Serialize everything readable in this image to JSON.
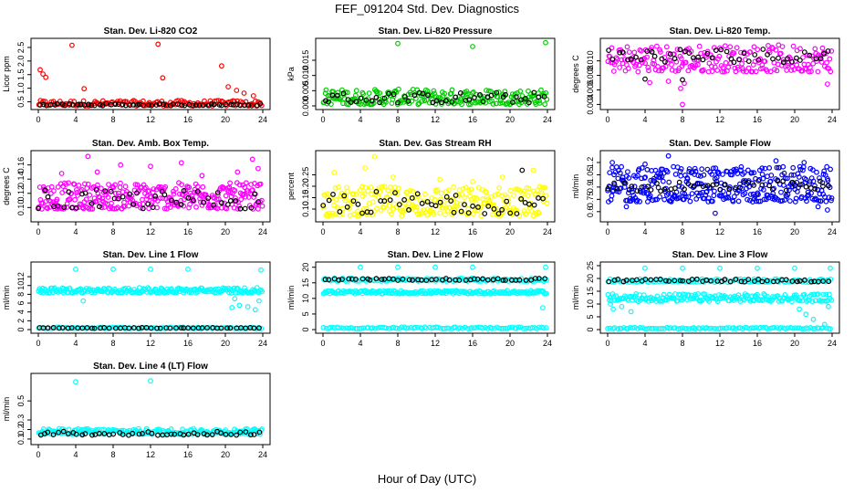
{
  "title": "FEF_091204  Std. Dev. Diagnostics",
  "xlabel": "Hour of Day (UTC)",
  "colors": {
    "red": "#ff0000",
    "green": "#00cc00",
    "magenta": "#ff00ff",
    "yellow": "#ffff00",
    "blue": "#0000ff",
    "cyan": "#00ffff",
    "black": "#000000"
  },
  "chart_data": [
    {
      "type": "scatter",
      "title": "Stan. Dev. Li-820 CO2",
      "ylabel": "Licor ppm",
      "xlim": [
        0,
        24
      ],
      "ylim": [
        0.35,
        2.7
      ],
      "xticks": [
        0,
        4,
        8,
        12,
        16,
        20,
        24
      ],
      "yticks": [
        {
          "v": 0.5,
          "l": "0.5"
        },
        {
          "v": 1.0,
          "l": "1.0"
        },
        {
          "v": 1.5,
          "l": "1.5"
        },
        {
          "v": 2.0,
          "l": "2.0"
        },
        {
          "v": 2.5,
          "l": "2.5"
        }
      ],
      "series": [
        {
          "color": "red",
          "dense": {
            "lo": 0.35,
            "hi": 0.55,
            "n": 140
          },
          "extra": [
            [
              0.2,
              1.68
            ],
            [
              0.5,
              1.52
            ],
            [
              0.8,
              1.4
            ],
            [
              3.6,
              2.58
            ],
            [
              4.9,
              0.98
            ],
            [
              12.8,
              2.62
            ],
            [
              13.3,
              1.38
            ],
            [
              19.6,
              1.82
            ],
            [
              20.3,
              1.05
            ],
            [
              21.2,
              0.92
            ],
            [
              22,
              0.82
            ],
            [
              23,
              0.72
            ]
          ]
        },
        {
          "color": "black",
          "dense": {
            "lo": 0.36,
            "hi": 0.43,
            "n": 60
          },
          "extra": []
        }
      ]
    },
    {
      "type": "scatter",
      "title": "Stan. Dev. Li-820 Pressure",
      "ylabel": "kPa",
      "xlim": [
        0,
        24
      ],
      "ylim": [
        0,
        0.021
      ],
      "xticks": [
        0,
        4,
        8,
        12,
        16,
        20,
        24
      ],
      "yticks": [
        {
          "v": 0,
          "l": "0.000"
        },
        {
          "v": 0.005,
          "l": "0.005"
        },
        {
          "v": 0.01,
          "l": "0.010"
        },
        {
          "v": 0.015,
          "l": "0.015"
        }
      ],
      "series": [
        {
          "color": "green",
          "dense": {
            "lo": 0.0005,
            "hi": 0.0055,
            "n": 230
          },
          "extra": [
            [
              8,
              0.0205
            ],
            [
              16,
              0.0195
            ],
            [
              23.8,
              0.0208
            ]
          ]
        },
        {
          "color": "black",
          "dense": {
            "lo": 0.001,
            "hi": 0.0045,
            "n": 48
          },
          "extra": []
        }
      ]
    },
    {
      "type": "scatter",
      "title": "Stan. Dev. Li-820 Temp.",
      "ylabel": "degrees C",
      "xlim": [
        0,
        24
      ],
      "ylim": [
        0.0038,
        0.0126
      ],
      "xticks": [
        0,
        4,
        8,
        12,
        16,
        20,
        24
      ],
      "yticks": [
        {
          "v": 0.004,
          "l": "0.004"
        },
        {
          "v": 0.006,
          "l": "0.006"
        },
        {
          "v": 0.008,
          "l": "0.008"
        },
        {
          "v": 0.01,
          "l": "0.010"
        }
      ],
      "series": [
        {
          "color": "magenta",
          "dense": {
            "lo": 0.0085,
            "hi": 0.0122,
            "n": 230
          },
          "extra": [
            [
              8,
              0.004
            ],
            [
              7.8,
              0.0062
            ],
            [
              4.5,
              0.007
            ],
            [
              23.5,
              0.0068
            ],
            [
              6.5,
              0.0072
            ],
            [
              8.2,
              0.0069
            ]
          ]
        },
        {
          "color": "black",
          "dense": {
            "lo": 0.0098,
            "hi": 0.0118,
            "n": 48
          },
          "extra": [
            [
              4,
              0.0075
            ],
            [
              8,
              0.0074
            ]
          ]
        }
      ]
    },
    {
      "type": "scatter",
      "title": "Stan. Dev. Amb. Box Temp.",
      "ylabel": "degrees C",
      "xlim": [
        0,
        24
      ],
      "ylim": [
        0.085,
        0.175
      ],
      "xticks": [
        0,
        4,
        8,
        12,
        16,
        20,
        24
      ],
      "yticks": [
        {
          "v": 0.1,
          "l": "0.10"
        },
        {
          "v": 0.12,
          "l": "0.12"
        },
        {
          "v": 0.14,
          "l": "0.14"
        },
        {
          "v": 0.16,
          "l": "0.16"
        }
      ],
      "series": [
        {
          "color": "magenta",
          "dense": {
            "lo": 0.098,
            "hi": 0.135,
            "n": 320
          },
          "extra": [
            [
              5.3,
              0.172
            ],
            [
              8.8,
              0.16
            ],
            [
              12,
              0.158
            ],
            [
              15.3,
              0.163
            ],
            [
              22.9,
              0.168
            ],
            [
              23.5,
              0.155
            ],
            [
              6.3,
              0.15
            ],
            [
              21.3,
              0.15
            ],
            [
              2.5,
              0.148
            ],
            [
              17.5,
              0.145
            ]
          ]
        },
        {
          "color": "black",
          "dense": {
            "lo": 0.098,
            "hi": 0.125,
            "n": 48
          },
          "extra": []
        }
      ]
    },
    {
      "type": "scatter",
      "title": "Stan. Dev. Gas Stream RH",
      "ylabel": "percent",
      "xlim": [
        0,
        24
      ],
      "ylim": [
        0.06,
        0.34
      ],
      "xticks": [
        0,
        4,
        8,
        12,
        16,
        20,
        24
      ],
      "yticks": [
        {
          "v": 0.1,
          "l": "0.10"
        },
        {
          "v": 0.15,
          "l": "0.15"
        },
        {
          "v": 0.2,
          "l": "0.20"
        },
        {
          "v": 0.25,
          "l": "0.25"
        }
      ],
      "series": [
        {
          "color": "yellow",
          "dense": {
            "lo": 0.07,
            "hi": 0.2,
            "n": 260
          },
          "extra": [
            [
              5.5,
              0.33
            ],
            [
              1.2,
              0.26
            ],
            [
              4.5,
              0.28
            ],
            [
              7.5,
              0.24
            ],
            [
              12.5,
              0.23
            ],
            [
              22.5,
              0.27
            ],
            [
              16,
              0.22
            ],
            [
              19.2,
              0.24
            ]
          ]
        },
        {
          "color": "black",
          "dense": {
            "lo": 0.08,
            "hi": 0.18,
            "n": 48
          },
          "extra": [
            [
              21.3,
              0.27
            ],
            [
              14.2,
              0.16
            ]
          ]
        }
      ]
    },
    {
      "type": "scatter",
      "title": "Stan. Dev. Sample Flow",
      "ylabel": "ml/min",
      "xlim": [
        0,
        24
      ],
      "ylim": [
        0.52,
        1.3
      ],
      "xticks": [
        0,
        4,
        8,
        12,
        16,
        20,
        24
      ],
      "yticks": [
        {
          "v": 0.6,
          "l": "0.6"
        },
        {
          "v": 0.75,
          "l": "0.75"
        },
        {
          "v": 0.9,
          "l": "0.9"
        },
        {
          "v": 1.05,
          "l": "1.05"
        },
        {
          "v": 1.2,
          "l": "1.2"
        }
      ],
      "series": [
        {
          "color": "blue",
          "dense": {
            "lo": 0.72,
            "hi": 1.15,
            "n": 360
          },
          "extra": [
            [
              0.5,
              1.2
            ],
            [
              4,
              1.18
            ],
            [
              6.5,
              1.28
            ],
            [
              11.5,
              0.58
            ],
            [
              18,
              1.22
            ],
            [
              21,
              1.2
            ],
            [
              23.5,
              0.62
            ],
            [
              22.5,
              0.66
            ],
            [
              2,
              0.66
            ],
            [
              15.5,
              0.72
            ]
          ]
        },
        {
          "color": "black",
          "dense": {
            "lo": 0.85,
            "hi": 0.98,
            "n": 48
          },
          "extra": []
        }
      ]
    },
    {
      "type": "scatter",
      "title": "Stan. Dev. Line 1 Flow",
      "ylabel": "ml/min",
      "xlim": [
        0,
        24
      ],
      "ylim": [
        0,
        14.5
      ],
      "xticks": [
        0,
        4,
        8,
        12,
        16,
        20,
        24
      ],
      "yticks": [
        {
          "v": 0,
          "l": "0"
        },
        {
          "v": 2,
          "l": "2"
        },
        {
          "v": 4,
          "l": "4"
        },
        {
          "v": 6,
          "l": "6"
        },
        {
          "v": 8,
          "l": "8"
        },
        {
          "v": 10,
          "l": "10"
        },
        {
          "v": 12,
          "l": "12"
        }
      ],
      "series": [
        {
          "color": "cyan",
          "dense": {
            "lo": 8.3,
            "hi": 9.5,
            "n": 220
          },
          "extra": [
            [
              4,
              13.7
            ],
            [
              8,
              13.7
            ],
            [
              12,
              13.7
            ],
            [
              16,
              13.7
            ],
            [
              23.8,
              13.5
            ],
            [
              21,
              7
            ],
            [
              21.5,
              5.5
            ],
            [
              23.2,
              4.5
            ],
            [
              23.6,
              6.5
            ],
            [
              4.8,
              6.5
            ],
            [
              22.4,
              5.2
            ],
            [
              20.7,
              5
            ]
          ]
        },
        {
          "color": "cyan",
          "dense": {
            "lo": 0.25,
            "hi": 0.55,
            "n": 100
          },
          "extra": []
        },
        {
          "color": "black",
          "dense": {
            "lo": 0.3,
            "hi": 0.45,
            "n": 48
          },
          "extra": []
        }
      ]
    },
    {
      "type": "scatter",
      "title": "Stan. Dev. Line 2 Flow",
      "ylabel": "ml/min",
      "xlim": [
        0,
        24
      ],
      "ylim": [
        0,
        20.5
      ],
      "xticks": [
        0,
        4,
        8,
        12,
        16,
        20,
        24
      ],
      "yticks": [
        {
          "v": 0,
          "l": "0"
        },
        {
          "v": 5,
          "l": "5"
        },
        {
          "v": 10,
          "l": "10"
        },
        {
          "v": 15,
          "l": "15"
        },
        {
          "v": 20,
          "l": "20"
        }
      ],
      "series": [
        {
          "color": "cyan",
          "dense": {
            "lo": 15.5,
            "hi": 16.5,
            "n": 120
          },
          "extra": [
            [
              4,
              20
            ],
            [
              8,
              20
            ],
            [
              12,
              20
            ],
            [
              16,
              20
            ],
            [
              23.8,
              20
            ]
          ]
        },
        {
          "color": "cyan",
          "dense": {
            "lo": 11.5,
            "hi": 12.5,
            "n": 200
          },
          "extra": [
            [
              23.5,
              7
            ]
          ]
        },
        {
          "color": "cyan",
          "dense": {
            "lo": 0.3,
            "hi": 0.8,
            "n": 100
          },
          "extra": []
        },
        {
          "color": "black",
          "dense": {
            "lo": 15.8,
            "hi": 16.4,
            "n": 48
          },
          "extra": []
        }
      ]
    },
    {
      "type": "scatter",
      "title": "Stan. Dev. Line 3 Flow",
      "ylabel": "ml/min",
      "xlim": [
        0,
        24
      ],
      "ylim": [
        0,
        25
      ],
      "xticks": [
        0,
        4,
        8,
        12,
        16,
        20,
        24
      ],
      "yticks": [
        {
          "v": 0,
          "l": "0"
        },
        {
          "v": 5,
          "l": "5"
        },
        {
          "v": 10,
          "l": "10"
        },
        {
          "v": 15,
          "l": "15"
        },
        {
          "v": 20,
          "l": "20"
        },
        {
          "v": 25,
          "l": "25"
        }
      ],
      "series": [
        {
          "color": "cyan",
          "dense": {
            "lo": 18.5,
            "hi": 19.8,
            "n": 120
          },
          "extra": [
            [
              4,
              24
            ],
            [
              8,
              24
            ],
            [
              12,
              24
            ],
            [
              16,
              24
            ],
            [
              20,
              24
            ],
            [
              23.8,
              24
            ]
          ]
        },
        {
          "color": "cyan",
          "dense": {
            "lo": 11,
            "hi": 14,
            "n": 200
          },
          "extra": [
            [
              0.3,
              10
            ],
            [
              0.6,
              8
            ],
            [
              1.5,
              9
            ],
            [
              2.5,
              7
            ],
            [
              20.5,
              8
            ],
            [
              21.2,
              6
            ],
            [
              22,
              4
            ],
            [
              23.2,
              2
            ],
            [
              23.6,
              9
            ]
          ]
        },
        {
          "color": "cyan",
          "dense": {
            "lo": 0.3,
            "hi": 0.8,
            "n": 100
          },
          "extra": []
        },
        {
          "color": "black",
          "dense": {
            "lo": 18.7,
            "hi": 19.7,
            "n": 48
          },
          "extra": []
        }
      ]
    },
    {
      "type": "scatter",
      "title": "Stan. Dev. Line 4 (LT) Flow",
      "ylabel": "ml/min",
      "xlim": [
        0,
        24
      ],
      "ylim": [
        0.08,
        0.75
      ],
      "xticks": [
        0,
        4,
        8,
        12,
        16,
        20,
        24
      ],
      "yticks": [
        {
          "v": 0.1,
          "l": "0.1"
        },
        {
          "v": 0.2,
          "l": "0.2"
        },
        {
          "v": 0.3,
          "l": "0.3"
        },
        {
          "v": 0.5,
          "l": "0.5"
        }
      ],
      "series": [
        {
          "color": "cyan",
          "dense": {
            "lo": 0.15,
            "hi": 0.21,
            "n": 220
          },
          "extra": [
            [
              4,
              0.7
            ],
            [
              12,
              0.71
            ]
          ]
        },
        {
          "color": "black",
          "dense": {
            "lo": 0.14,
            "hi": 0.18,
            "n": 48
          },
          "extra": []
        }
      ]
    }
  ]
}
